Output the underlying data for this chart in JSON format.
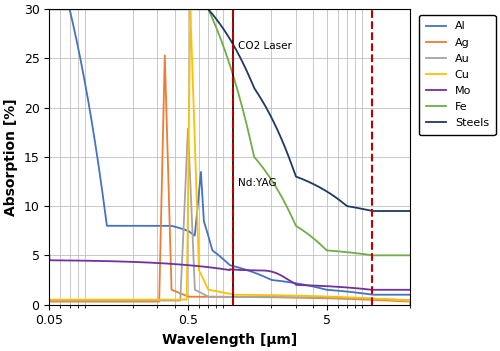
{
  "title": "",
  "xlabel": "Wavelength [μm]",
  "ylabel": "Absorption [%]",
  "ylim": [
    0,
    30
  ],
  "nd_yag_wavelength": 1.064,
  "co2_wavelength": 10.6,
  "nd_yag_label": "Nd:YAG",
  "co2_label": "CO2 Laser",
  "legend_labels": [
    "Al",
    "Ag",
    "Au",
    "Cu",
    "Mo",
    "Fe",
    "Steels"
  ],
  "line_colors": [
    "#4472C4",
    "#ED7D31",
    "#A5A5A5",
    "#FFC000",
    "#7030A0",
    "#70AD47",
    "#1F3864"
  ],
  "grid_color": "#BFBFBF",
  "vline_color": "#C00000",
  "background_color": "#FFFFFF"
}
